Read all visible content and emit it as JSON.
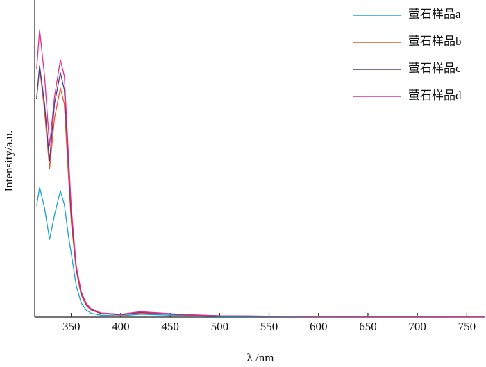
{
  "chart_data": {
    "type": "line",
    "x_label": "λ /nm",
    "y_label": "Intensity/a.u.",
    "xlim": [
      313,
      768
    ],
    "ylim": [
      0,
      100
    ],
    "xticks": [
      350,
      400,
      450,
      500,
      550,
      600,
      650,
      700,
      750
    ],
    "x": [
      315,
      318,
      323,
      328,
      333,
      339,
      343,
      347,
      350,
      355,
      360,
      365,
      370,
      380,
      400,
      420,
      440,
      460,
      500,
      600,
      768
    ],
    "series": [
      {
        "name": "萤石样品a",
        "color": "#1a9fd6",
        "values": [
          35.2,
          41.1,
          34.5,
          24.6,
          32.3,
          40.0,
          35.6,
          26.0,
          20.0,
          10.0,
          4.5,
          2.2,
          1.2,
          0.6,
          0.4,
          0.9,
          0.7,
          0.5,
          0.2,
          0.1,
          0.1
        ]
      },
      {
        "name": "萤石样品b",
        "color": "#e8542a",
        "values": [
          69.2,
          79.1,
          65.3,
          47.0,
          63.0,
          72.5,
          67.5,
          45.5,
          30.0,
          14.7,
          7.0,
          3.7,
          2.2,
          1.1,
          0.7,
          1.3,
          1.1,
          0.7,
          0.4,
          0.2,
          0.1
        ]
      },
      {
        "name": "萤石样品c",
        "color": "#4b3a8c",
        "values": [
          69.2,
          79.6,
          67.5,
          49.5,
          67.5,
          77.4,
          71.9,
          49.9,
          32.3,
          15.8,
          7.7,
          4.2,
          2.4,
          1.2,
          0.8,
          1.5,
          1.2,
          0.8,
          0.4,
          0.2,
          0.1
        ]
      },
      {
        "name": "萤石样品d",
        "color": "#e0308c",
        "values": [
          78.5,
          91.0,
          76.3,
          54.3,
          69.7,
          81.5,
          76.3,
          52.1,
          34.5,
          16.3,
          8.1,
          4.4,
          2.6,
          1.3,
          0.9,
          1.7,
          1.3,
          0.9,
          0.4,
          0.2,
          0.1
        ]
      }
    ]
  }
}
